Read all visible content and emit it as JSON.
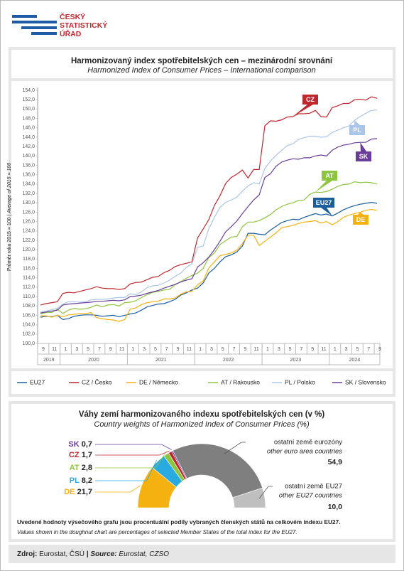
{
  "logo": [
    "ČESKÝ",
    "STATISTICKÝ",
    "ÚŘAD"
  ],
  "footer": [
    "Zdroj:",
    "Eurostat, ČSÚ",
    "|",
    "Source:",
    "Eurostat, CZSO"
  ],
  "chart_data": [
    {
      "type": "line",
      "title": "Harmonizovaný index spotřebitelských cen – mezinárodní srovnání",
      "subtitle": "Harmonized Index of Consumer Prices – International comparison",
      "y_label": [
        "Průměr roku 2015 = 100",
        "|",
        "Average of 2015 = 100"
      ],
      "categories": [
        "9",
        null,
        "11",
        null,
        "1",
        null,
        "3",
        null,
        "5",
        null,
        "7",
        null,
        "9",
        null,
        "11",
        null,
        "1",
        null,
        "3",
        null,
        "5",
        null,
        "7",
        null,
        "9",
        null,
        "11",
        null,
        "1",
        null,
        "3",
        null,
        "5",
        null,
        "7",
        null,
        "9",
        null,
        "11",
        null,
        "1",
        null,
        "3",
        null,
        "5",
        null,
        "7",
        null,
        "9",
        null,
        "11",
        null,
        "1",
        null,
        "3",
        null,
        "5",
        null,
        "7",
        null,
        "9"
      ],
      "year_groups": [
        {
          "label": "2019",
          "months": 4
        },
        {
          "label": "2020",
          "months": 12
        },
        {
          "label": "2021",
          "months": 12
        },
        {
          "label": "2022",
          "months": 12
        },
        {
          "label": "2023",
          "months": 12
        },
        {
          "label": "2024",
          "months": 9
        }
      ],
      "ylim": [
        100,
        154
      ],
      "yticks": [
        {
          "value": 100,
          "label": "100,0"
        },
        {
          "value": 102,
          "label": "102,0"
        },
        {
          "value": 104,
          "label": "104,0"
        },
        {
          "value": 106,
          "label": "106,0"
        },
        {
          "value": 108,
          "label": "108,0"
        },
        {
          "value": 110,
          "label": "110,0"
        },
        {
          "value": 112,
          "label": "112,0"
        },
        {
          "value": 114,
          "label": "114,0"
        },
        {
          "value": 116,
          "label": "116,0"
        },
        {
          "value": 118,
          "label": "118,0"
        },
        {
          "value": 120,
          "label": "120,0"
        },
        {
          "value": 122,
          "label": "122,0"
        },
        {
          "value": 124,
          "label": "124,0"
        },
        {
          "value": 126,
          "label": "126,0"
        },
        {
          "value": 128,
          "label": "128,0"
        },
        {
          "value": 130,
          "label": "130,0"
        },
        {
          "value": 132,
          "label": "132,0"
        },
        {
          "value": 134,
          "label": "134,0"
        },
        {
          "value": 136,
          "label": "136,0"
        },
        {
          "value": 138,
          "label": "138,0"
        },
        {
          "value": 140,
          "label": "140,0"
        },
        {
          "value": 142,
          "label": "142,0"
        },
        {
          "value": 144,
          "label": "144,0"
        },
        {
          "value": 146,
          "label": "146,0"
        },
        {
          "value": 148,
          "label": "148,0"
        },
        {
          "value": 150,
          "label": "150,0"
        },
        {
          "value": 152,
          "label": "152,0"
        },
        {
          "value": 154,
          "label": "154,0"
        }
      ],
      "grid": false,
      "series": [
        {
          "name": "EU27",
          "short": "EU27",
          "color": "#1b5e9e",
          "values": [
            105.6,
            105.8,
            105.7,
            106.0,
            105.1,
            105.3,
            105.8,
            106.0,
            106.1,
            106.1,
            106.0,
            105.8,
            105.9,
            106.0,
            105.7,
            106.0,
            106.3,
            106.5,
            107.1,
            107.8,
            108.1,
            108.4,
            108.5,
            108.9,
            109.4,
            110.3,
            110.8,
            111.4,
            111.8,
            112.9,
            115.0,
            116.0,
            117.4,
            118.5,
            118.9,
            119.5,
            120.8,
            123.5,
            123.5,
            123.3,
            123.2,
            124.2,
            125.0,
            125.8,
            126.2,
            126.5,
            126.4,
            126.9,
            127.3,
            127.7,
            127.4,
            127.6,
            127.2,
            127.8,
            128.5,
            129.0,
            129.4,
            129.7,
            129.9,
            130.1,
            129.9
          ]
        },
        {
          "name": "CZ / Česko",
          "short": "CZ",
          "color": "#c0272d",
          "values": [
            108.2,
            108.5,
            108.7,
            108.9,
            110.7,
            110.9,
            110.8,
            111.1,
            111.4,
            111.7,
            112.1,
            111.8,
            111.7,
            111.7,
            111.5,
            111.7,
            112.7,
            113.0,
            113.1,
            113.6,
            114.1,
            114.3,
            115.1,
            115.6,
            116.4,
            116.8,
            117.1,
            117.4,
            122.5,
            124.4,
            126.4,
            129.4,
            131.5,
            134.1,
            135.4,
            136.1,
            137.0,
            135.3,
            137.1,
            137.1,
            146.4,
            147.5,
            147.4,
            147.7,
            148.3,
            148.4,
            149.0,
            149.0,
            149.1,
            149.7,
            148.4,
            148.3,
            150.3,
            150.7,
            151.2,
            151.2,
            152.0,
            152.1,
            151.9,
            152.6,
            152.3
          ]
        },
        {
          "name": "DE / Německo",
          "short": "DE",
          "color": "#f5b10f",
          "values": [
            105.9,
            105.9,
            105.6,
            106.0,
            105.7,
            106.1,
            106.2,
            106.4,
            106.3,
            106.6,
            105.5,
            105.3,
            105.1,
            105.0,
            104.7,
            105.1,
            107.3,
            107.6,
            108.3,
            108.7,
            108.9,
            109.0,
            109.5,
            109.5,
            109.7,
            110.5,
            111.0,
            111.1,
            112.5,
            113.3,
            116.1,
            117.4,
            118.7,
            119.0,
            119.3,
            119.9,
            121.3,
            123.1,
            123.1,
            120.9,
            121.8,
            122.7,
            123.6,
            124.7,
            124.9,
            125.2,
            125.6,
            125.9,
            126.0,
            126.2,
            125.7,
            126.0,
            125.3,
            126.0,
            126.9,
            127.4,
            127.7,
            128.0,
            128.4,
            128.6,
            128.4
          ]
        },
        {
          "name": "AT / Rakousko",
          "short": "AT",
          "color": "#8cc63e",
          "values": [
            106.3,
            106.6,
            106.6,
            107.3,
            106.4,
            107.1,
            107.5,
            107.3,
            107.4,
            107.7,
            108.2,
            107.8,
            108.2,
            108.3,
            108.0,
            108.7,
            108.8,
            109.1,
            109.8,
            110.4,
            110.9,
            111.1,
            111.4,
            111.5,
            112.5,
            113.2,
            113.9,
            114.5,
            115.0,
            116.0,
            118.3,
            119.3,
            121.1,
            121.9,
            122.7,
            122.8,
            124.9,
            125.9,
            125.9,
            126.2,
            126.8,
            127.5,
            128.5,
            129.2,
            129.7,
            130.0,
            130.5,
            130.6,
            131.8,
            132.3,
            132.2,
            132.4,
            132.9,
            133.5,
            133.9,
            134.0,
            134.5,
            134.3,
            134.4,
            134.3,
            134.0
          ]
        },
        {
          "name": "PL / Polsko",
          "short": "PL",
          "color": "#a9c6ea",
          "values": [
            106.8,
            106.9,
            107.2,
            107.5,
            108.4,
            108.9,
            108.9,
            108.8,
            108.9,
            109.3,
            109.4,
            109.4,
            109.5,
            109.7,
            109.8,
            109.8,
            110.6,
            110.4,
            111.0,
            111.9,
            112.3,
            112.4,
            112.9,
            113.5,
            114.3,
            115.0,
            116.2,
            117.0,
            120.5,
            120.8,
            124.4,
            126.9,
            129.0,
            130.1,
            130.6,
            131.2,
            132.5,
            133.6,
            134.3,
            134.0,
            137.3,
            138.9,
            140.1,
            141.2,
            142.2,
            142.6,
            143.5,
            143.9,
            144.2,
            144.2,
            144.0,
            144.1,
            145.0,
            145.5,
            146.0,
            146.4,
            147.6,
            148.4,
            149.1,
            149.7,
            149.8
          ]
        },
        {
          "name": "SK / Slovensko",
          "short": "SK",
          "color": "#6a3d9a",
          "values": [
            106.5,
            106.7,
            106.9,
            107.1,
            108.2,
            108.4,
            108.5,
            108.6,
            108.7,
            108.8,
            109.0,
            109.0,
            109.1,
            109.2,
            109.1,
            109.3,
            110.0,
            110.1,
            110.3,
            110.7,
            111.0,
            111.3,
            111.8,
            112.2,
            112.6,
            113.1,
            113.5,
            113.8,
            116.3,
            117.2,
            118.4,
            120.0,
            121.8,
            123.8,
            124.9,
            126.1,
            127.7,
            129.2,
            130.6,
            131.7,
            135.4,
            136.2,
            137.8,
            138.7,
            139.1,
            139.4,
            139.3,
            139.6,
            139.6,
            140.0,
            140.2,
            140.0,
            141.2,
            141.9,
            142.3,
            142.5,
            142.8,
            142.9,
            142.9,
            143.6,
            143.7
          ]
        }
      ]
    },
    {
      "type": "doughnut",
      "title": "Váhy zemí harmonizovaného indexu spotřebitelských cen (v %)",
      "subtitle": "Country weights of Harmonized Index of Consumer Prices (%)",
      "note": [
        "Uvedené hodnoty výsečového grafu jsou procentuální podíly vybraných členských států na celkovém indexu EU27.",
        "Values shown in the doughnut chart are percentages of selected Member States of the total index for the EU27."
      ],
      "segments": [
        {
          "name": "DE",
          "value": 21.7,
          "value_label": "21,7",
          "color": "#f5b10f"
        },
        {
          "name": "PL",
          "value": 8.2,
          "value_label": "8,2",
          "color": "#29abe2"
        },
        {
          "name": "AT",
          "value": 2.8,
          "value_label": "2,8",
          "color": "#8cc63e"
        },
        {
          "name": "CZ",
          "value": 1.7,
          "value_label": "1,7",
          "color": "#c0272d"
        },
        {
          "name": "SK",
          "value": 0.7,
          "value_label": "0,7",
          "color": "#6a3d9a"
        },
        {
          "name": "ostatní země eurozóny",
          "name_en": "other euro area countries",
          "value": 54.9,
          "value_label": "54,9",
          "color": "#7f7f7f"
        },
        {
          "name": "ostatní země EU27",
          "name_en": "other EU27 countries",
          "value": 10.0,
          "value_label": "10,0",
          "color": "#bfbfbf"
        }
      ]
    }
  ]
}
